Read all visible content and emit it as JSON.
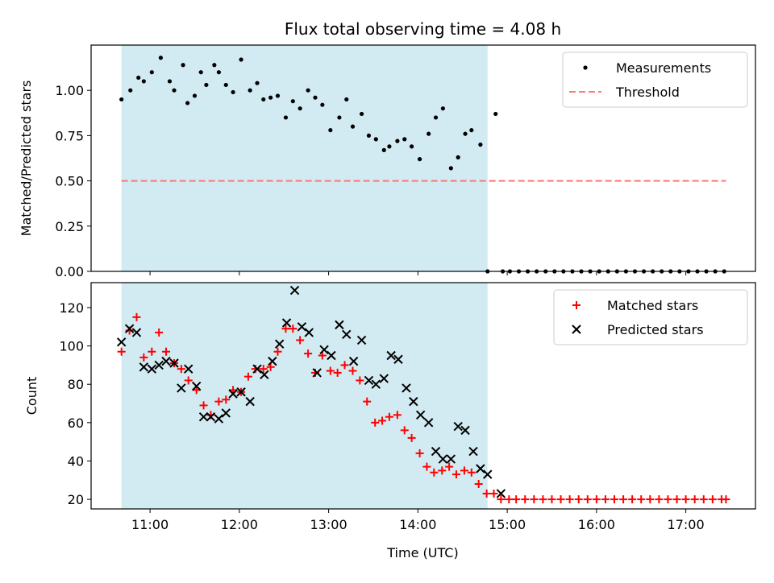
{
  "chart_data": {
    "title": "Flux total observing time = 4.08 h",
    "xlabel": "Time (UTC)",
    "x_tick_labels": [
      "11:00",
      "12:00",
      "13:00",
      "14:00",
      "15:00",
      "16:00",
      "17:00"
    ],
    "observing_window": {
      "start": 10.68,
      "end": 14.78,
      "color": "#add8e6"
    },
    "panels": [
      {
        "type": "scatter",
        "ylabel": "Matched/Predicted stars",
        "ylim": [
          0,
          1.25
        ],
        "y_tick_labels": [
          "0.00",
          "0.25",
          "0.50",
          "0.75",
          "1.00"
        ],
        "grid": false,
        "legend": {
          "position": "top-right",
          "entries": [
            "Measurements",
            "Threshold"
          ]
        },
        "threshold": {
          "name": "Threshold",
          "value": 0.5,
          "x_range": [
            10.68,
            17.45
          ],
          "color": "#ff7777"
        },
        "series": [
          {
            "name": "Measurements",
            "color": "#000000",
            "marker": "dot",
            "x": [
              10.68,
              10.78,
              10.87,
              10.93,
              11.02,
              11.12,
              11.22,
              11.27,
              11.37,
              11.42,
              11.5,
              11.57,
              11.63,
              11.72,
              11.77,
              11.85,
              11.93,
              12.02,
              12.12,
              12.2,
              12.27,
              12.35,
              12.43,
              12.52,
              12.6,
              12.68,
              12.77,
              12.85,
              12.93,
              13.02,
              13.12,
              13.2,
              13.27,
              13.37,
              13.45,
              13.53,
              13.62,
              13.68,
              13.77,
              13.85,
              13.93,
              14.02,
              14.12,
              14.2,
              14.28,
              14.37,
              14.45,
              14.53,
              14.6,
              14.7,
              14.78,
              14.87,
              14.95,
              15.03,
              15.13,
              15.23,
              15.33,
              15.43,
              15.53,
              15.63,
              15.73,
              15.83,
              15.93,
              16.03,
              16.13,
              16.23,
              16.33,
              16.43,
              16.53,
              16.63,
              16.73,
              16.83,
              16.93,
              17.03,
              17.13,
              17.23,
              17.33,
              17.43
            ],
            "y": [
              0.95,
              1.0,
              1.07,
              1.05,
              1.1,
              1.18,
              1.05,
              1.0,
              1.14,
              0.93,
              0.97,
              1.1,
              1.03,
              1.14,
              1.1,
              1.03,
              0.99,
              1.17,
              1.0,
              1.04,
              0.95,
              0.96,
              0.97,
              0.85,
              0.94,
              0.9,
              1.0,
              0.96,
              0.92,
              0.78,
              0.85,
              0.95,
              0.8,
              0.87,
              0.75,
              0.73,
              0.67,
              0.69,
              0.72,
              0.73,
              0.69,
              0.62,
              0.76,
              0.85,
              0.9,
              0.57,
              0.63,
              0.76,
              0.78,
              0.7,
              0.0,
              0.87,
              0.0,
              0.0,
              0.0,
              0.0,
              0.0,
              0.0,
              0.0,
              0.0,
              0.0,
              0.0,
              0.0,
              0.0,
              0.0,
              0.0,
              0.0,
              0.0,
              0.0,
              0.0,
              0.0,
              0.0,
              0.0,
              0.0,
              0.0,
              0.0,
              0.0,
              0.0
            ]
          }
        ]
      },
      {
        "type": "scatter",
        "ylabel": "Count",
        "ylim": [
          15,
          133
        ],
        "y_tick_labels": [
          "20",
          "40",
          "60",
          "80",
          "100",
          "120"
        ],
        "grid": false,
        "legend": {
          "position": "top-right",
          "entries": [
            "Matched stars",
            "Predicted stars"
          ]
        },
        "series": [
          {
            "name": "Matched stars",
            "color": "#ff0000",
            "marker": "plus",
            "x": [
              10.68,
              10.77,
              10.85,
              10.93,
              11.02,
              11.1,
              11.18,
              11.27,
              11.35,
              11.43,
              11.52,
              11.6,
              11.68,
              11.77,
              11.85,
              11.93,
              12.02,
              12.1,
              12.18,
              12.27,
              12.35,
              12.43,
              12.52,
              12.6,
              12.68,
              12.77,
              12.85,
              12.93,
              13.02,
              13.1,
              13.18,
              13.27,
              13.35,
              13.43,
              13.52,
              13.6,
              13.68,
              13.77,
              13.85,
              13.93,
              14.02,
              14.1,
              14.18,
              14.27,
              14.35,
              14.43,
              14.52,
              14.6,
              14.68,
              14.77,
              14.85,
              14.93,
              15.02,
              15.1,
              15.2,
              15.3,
              15.4,
              15.5,
              15.6,
              15.7,
              15.8,
              15.9,
              16.0,
              16.1,
              16.2,
              16.3,
              16.4,
              16.5,
              16.6,
              16.7,
              16.8,
              16.9,
              17.0,
              17.1,
              17.2,
              17.3,
              17.4,
              17.45
            ],
            "y": [
              97,
              108,
              115,
              94,
              97,
              107,
              97,
              91,
              88,
              82,
              77,
              69,
              64,
              71,
              72,
              77,
              76,
              84,
              88,
              88,
              89,
              97,
              109,
              109,
              103,
              96,
              86,
              95,
              87,
              86,
              90,
              87,
              82,
              71,
              60,
              61,
              63,
              64,
              56,
              52,
              44,
              37,
              34,
              35,
              37,
              33,
              35,
              34,
              28,
              23,
              23,
              20,
              20,
              20,
              20,
              20,
              20,
              20,
              20,
              20,
              20,
              20,
              20,
              20,
              20,
              20,
              20,
              20,
              20,
              20,
              20,
              20,
              20,
              20,
              20,
              20,
              20,
              20
            ]
          },
          {
            "name": "Predicted stars",
            "color": "#000000",
            "marker": "x",
            "x": [
              10.68,
              10.77,
              10.85,
              10.93,
              11.02,
              11.1,
              11.18,
              11.27,
              11.35,
              11.43,
              11.52,
              11.6,
              11.68,
              11.77,
              11.85,
              11.93,
              12.02,
              12.12,
              12.2,
              12.28,
              12.37,
              12.45,
              12.53,
              12.62,
              12.7,
              12.78,
              12.87,
              12.95,
              13.03,
              13.12,
              13.2,
              13.28,
              13.37,
              13.45,
              13.53,
              13.62,
              13.7,
              13.78,
              13.87,
              13.95,
              14.03,
              14.12,
              14.2,
              14.28,
              14.37,
              14.45,
              14.53,
              14.62,
              14.7,
              14.78,
              14.93
            ],
            "y": [
              102,
              109,
              107,
              89,
              88,
              90,
              92,
              91,
              78,
              88,
              79,
              63,
              63,
              62,
              65,
              75,
              76,
              71,
              88,
              85,
              92,
              101,
              112,
              129,
              110,
              107,
              86,
              98,
              95,
              111,
              106,
              92,
              103,
              82,
              80,
              83,
              95,
              93,
              78,
              71,
              64,
              60,
              45,
              41,
              41,
              58,
              56,
              45,
              36,
              33,
              23
            ]
          }
        ]
      }
    ]
  }
}
